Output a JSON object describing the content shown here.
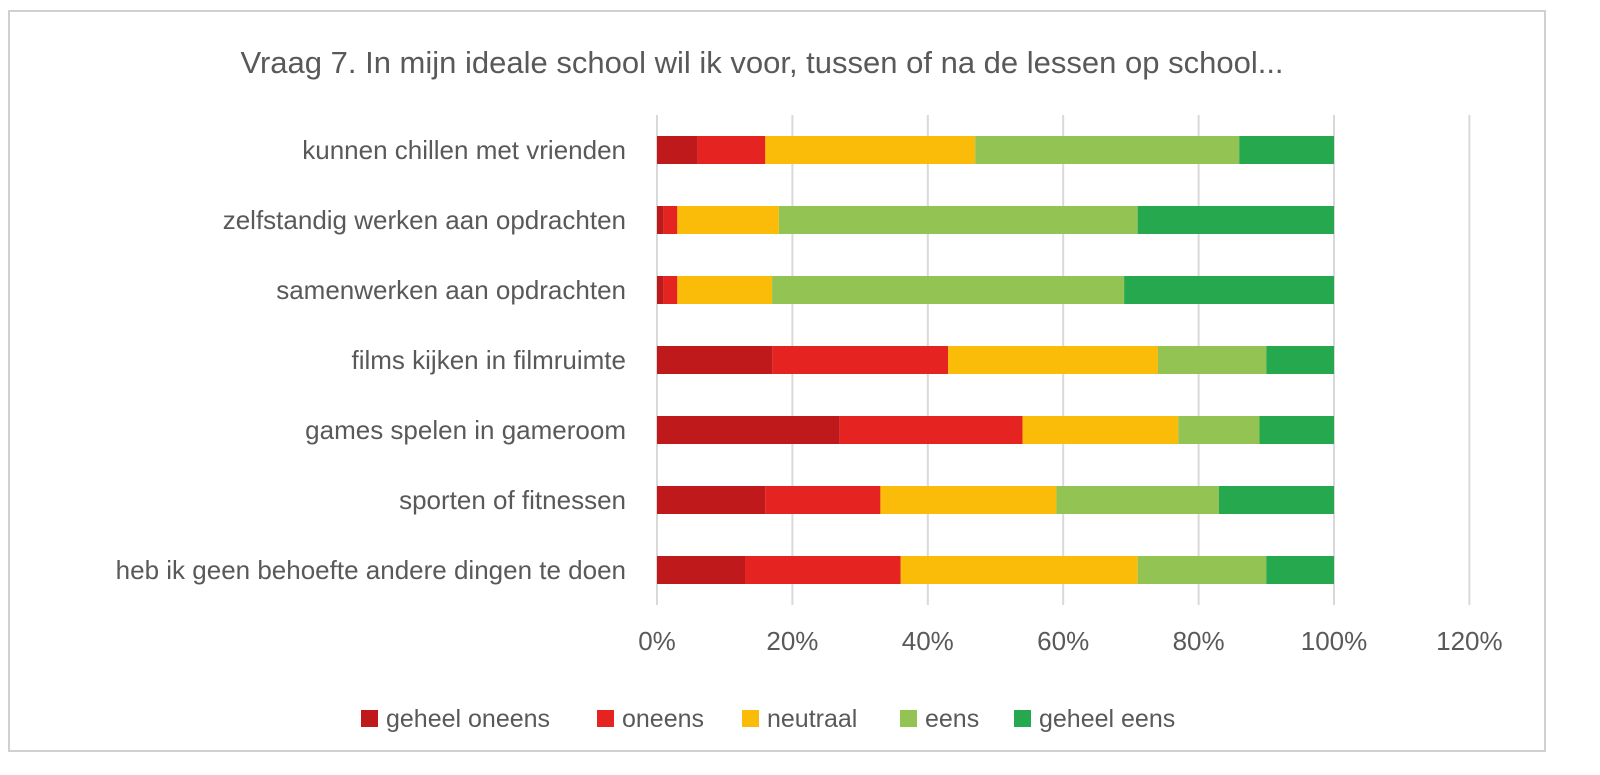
{
  "chart_data": {
    "type": "bar",
    "orientation": "horizontal",
    "stacked": true,
    "title": "Vraag 7. In mijn ideale school wil ik voor, tussen of na de lessen op school...",
    "categories": [
      "kunnen chillen met vrienden",
      "zelfstandig werken aan opdrachten",
      "samenwerken aan opdrachten",
      "films kijken in filmruimte",
      "games spelen in gameroom",
      "sporten of fitnessen",
      "heb ik geen behoefte andere dingen te doen"
    ],
    "series": [
      {
        "name": "geheel oneens",
        "color": "#C0191C",
        "values": [
          6,
          1,
          1,
          17,
          27,
          16,
          13
        ]
      },
      {
        "name": "oneens",
        "color": "#E52421",
        "values": [
          10,
          2,
          2,
          26,
          27,
          17,
          23
        ]
      },
      {
        "name": "neutraal",
        "color": "#FBBC09",
        "values": [
          31,
          15,
          14,
          31,
          23,
          26,
          35
        ]
      },
      {
        "name": "eens",
        "color": "#92C353",
        "values": [
          39,
          53,
          52,
          16,
          12,
          24,
          19
        ]
      },
      {
        "name": "geheel eens",
        "color": "#25A84E",
        "values": [
          14,
          29,
          31,
          10,
          11,
          17,
          10
        ]
      }
    ],
    "xlim": [
      0,
      120
    ],
    "xticks": [
      0,
      20,
      40,
      60,
      80,
      100,
      120
    ],
    "xtick_labels": [
      "0%",
      "20%",
      "40%",
      "60%",
      "80%",
      "100%",
      "120%"
    ],
    "xlabel": "",
    "ylabel": "",
    "grid": "vertical",
    "legend": "bottom",
    "gridline_color": "#d9d9d9"
  }
}
